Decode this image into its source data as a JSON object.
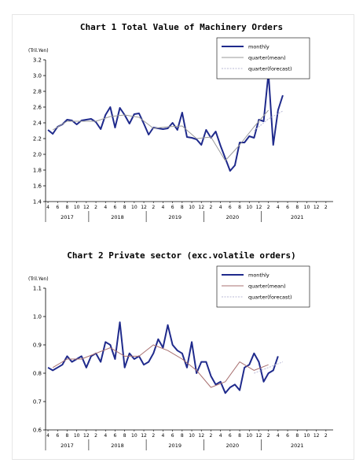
{
  "chart_data": [
    {
      "type": "line",
      "title": "Chart 1 Total Value of Machinery Orders",
      "unit": "(Tril.Yen)",
      "ylim": [
        1.4,
        3.2
      ],
      "yticks": [
        "1.4",
        "1.6",
        "1.8",
        "2.0",
        "2.2",
        "2.4",
        "2.6",
        "2.8",
        "3.0",
        "3.2"
      ],
      "month_ticks": [
        "4",
        "6",
        "8",
        "10",
        "12",
        "2",
        "4",
        "6",
        "8",
        "10",
        "12",
        "2",
        "4",
        "6",
        "8",
        "10",
        "12",
        "2",
        "4",
        "6",
        "8",
        "10",
        "12",
        "2",
        "4",
        "6",
        "8",
        "10",
        "12",
        "2"
      ],
      "years": [
        "2017",
        "2018",
        "2019",
        "2020",
        "2021"
      ],
      "legend": {
        "placement": "top-right",
        "entries": [
          "monthly",
          "quarter(mean)",
          "quarter(forecast)"
        ]
      },
      "series": [
        {
          "name": "monthly",
          "color": "#1f2a8c",
          "style": "solid-thick",
          "start_index": 0,
          "values": [
            2.31,
            2.26,
            2.35,
            2.38,
            2.44,
            2.43,
            2.38,
            2.43,
            2.44,
            2.45,
            2.41,
            2.32,
            2.5,
            2.6,
            2.34,
            2.59,
            2.5,
            2.39,
            2.51,
            2.52,
            2.39,
            2.25,
            2.34,
            2.33,
            2.32,
            2.33,
            2.4,
            2.31,
            2.53,
            2.22,
            2.21,
            2.19,
            2.12,
            2.31,
            2.21,
            2.29,
            2.11,
            1.95,
            1.79,
            1.86,
            2.15,
            2.15,
            2.23,
            2.21,
            2.44,
            2.42,
            3.03,
            2.12,
            2.56,
            2.75
          ]
        },
        {
          "name": "quarter(mean)",
          "color": "#9a9a9a",
          "style": "solid-thin",
          "start_index": 1,
          "step": 3,
          "values": [
            2.31,
            2.42,
            2.42,
            2.42,
            2.48,
            2.5,
            2.47,
            2.33,
            2.35,
            2.36,
            2.2,
            2.22,
            1.92,
            2.12,
            2.35,
            2.56
          ]
        },
        {
          "name": "quarter(forecast)",
          "color": "#b9b9d6",
          "style": "dotted",
          "start_index": 43,
          "step": 3,
          "values": [
            2.3,
            2.45,
            2.55
          ]
        }
      ]
    },
    {
      "type": "line",
      "title": "Chart 2 Private sector (exc.volatile orders)",
      "unit": "(Tril.Yen)",
      "ylim": [
        0.6,
        1.1
      ],
      "yticks": [
        "0.6",
        "0.7",
        "0.8",
        "0.9",
        "1.0",
        "1.1"
      ],
      "month_ticks": [
        "4",
        "6",
        "8",
        "10",
        "12",
        "2",
        "4",
        "6",
        "8",
        "10",
        "12",
        "2",
        "4",
        "6",
        "8",
        "10",
        "12",
        "2",
        "4",
        "6",
        "8",
        "10",
        "12",
        "2",
        "4",
        "6",
        "8",
        "10",
        "12",
        "2"
      ],
      "years": [
        "2017",
        "2018",
        "2019",
        "2020",
        "2021"
      ],
      "legend": {
        "placement": "top-right",
        "entries": [
          "monthly",
          "quarter(mean)",
          "quarter(forecast)"
        ]
      },
      "series": [
        {
          "name": "monthly",
          "color": "#1f2a8c",
          "style": "solid-thick",
          "start_index": 0,
          "values": [
            0.82,
            0.81,
            0.82,
            0.83,
            0.86,
            0.84,
            0.85,
            0.86,
            0.82,
            0.86,
            0.87,
            0.84,
            0.91,
            0.9,
            0.85,
            0.98,
            0.82,
            0.87,
            0.85,
            0.86,
            0.83,
            0.84,
            0.87,
            0.92,
            0.89,
            0.97,
            0.9,
            0.88,
            0.87,
            0.82,
            0.91,
            0.8,
            0.84,
            0.84,
            0.79,
            0.76,
            0.77,
            0.73,
            0.75,
            0.76,
            0.74,
            0.82,
            0.83,
            0.87,
            0.84,
            0.77,
            0.8,
            0.81,
            0.86
          ]
        },
        {
          "name": "quarter(mean)",
          "color": "#a87070",
          "style": "solid-thin",
          "start_index": 1,
          "step": 3,
          "values": [
            0.82,
            0.85,
            0.85,
            0.87,
            0.89,
            0.86,
            0.86,
            0.9,
            0.88,
            0.85,
            0.81,
            0.75,
            0.77,
            0.84,
            0.81,
            0.83
          ]
        },
        {
          "name": "quarter(forecast)",
          "color": "#b9b9d6",
          "style": "dotted",
          "start_index": 43,
          "step": 3,
          "values": [
            0.8,
            0.82,
            0.84
          ]
        }
      ]
    }
  ]
}
